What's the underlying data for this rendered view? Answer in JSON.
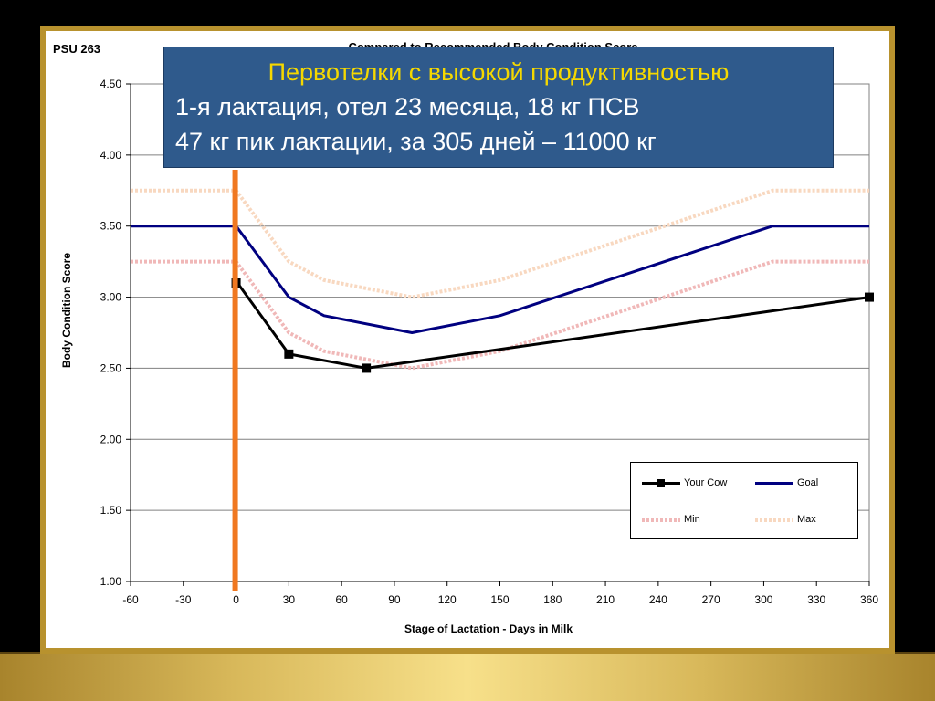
{
  "slide": {
    "psu_label": "PSU 263",
    "chart_heading_partial": "Compared to Recommended Body Condition Score"
  },
  "info_box": {
    "title": "Первотелки с высокой продуктивностью",
    "line1": "1-я лактация, отел 23 месяца, 18 кг ПСВ",
    "line2": "47 кг пик лактации, за 305 дней – 11000 кг"
  },
  "colors": {
    "your_cow": "#000000",
    "goal": "#000080",
    "min": "#f0b8b8",
    "max": "#f8d8c0",
    "marker_line": "#f07820",
    "frame_gold": "#b8922e"
  },
  "chart_data": {
    "type": "line",
    "xlabel": "Stage of Lactation - Days in Milk",
    "ylabel": "Body Condition Score",
    "xlim": [
      -60,
      360
    ],
    "ylim": [
      1.0,
      4.5
    ],
    "x_ticks": [
      "-60",
      "-30",
      "0",
      "30",
      "60",
      "90",
      "120",
      "150",
      "180",
      "210",
      "240",
      "270",
      "300",
      "330",
      "360"
    ],
    "y_ticks": [
      "1.00",
      "1.50",
      "2.00",
      "2.50",
      "3.00",
      "3.50",
      "4.00",
      "4.50"
    ],
    "grid": "horizontal",
    "legend_position": "bottom-right",
    "vertical_marker_x": 0,
    "series": [
      {
        "name": "Your Cow",
        "x": [
          0,
          2,
          30,
          74,
          360
        ],
        "y": [
          3.1,
          3.08,
          2.6,
          2.5,
          3.0
        ]
      },
      {
        "name": "Goal",
        "x": [
          -60,
          0,
          30,
          50,
          100,
          150,
          305,
          360
        ],
        "y": [
          3.5,
          3.5,
          3.0,
          2.87,
          2.75,
          2.87,
          3.5,
          3.5
        ]
      },
      {
        "name": "Min",
        "x": [
          -60,
          0,
          30,
          50,
          100,
          150,
          305,
          360
        ],
        "y": [
          3.25,
          3.25,
          2.75,
          2.62,
          2.5,
          2.62,
          3.25,
          3.25
        ]
      },
      {
        "name": "Max",
        "x": [
          -60,
          0,
          30,
          50,
          100,
          150,
          305,
          360
        ],
        "y": [
          3.75,
          3.75,
          3.25,
          3.12,
          3.0,
          3.12,
          3.75,
          3.75
        ]
      }
    ]
  }
}
